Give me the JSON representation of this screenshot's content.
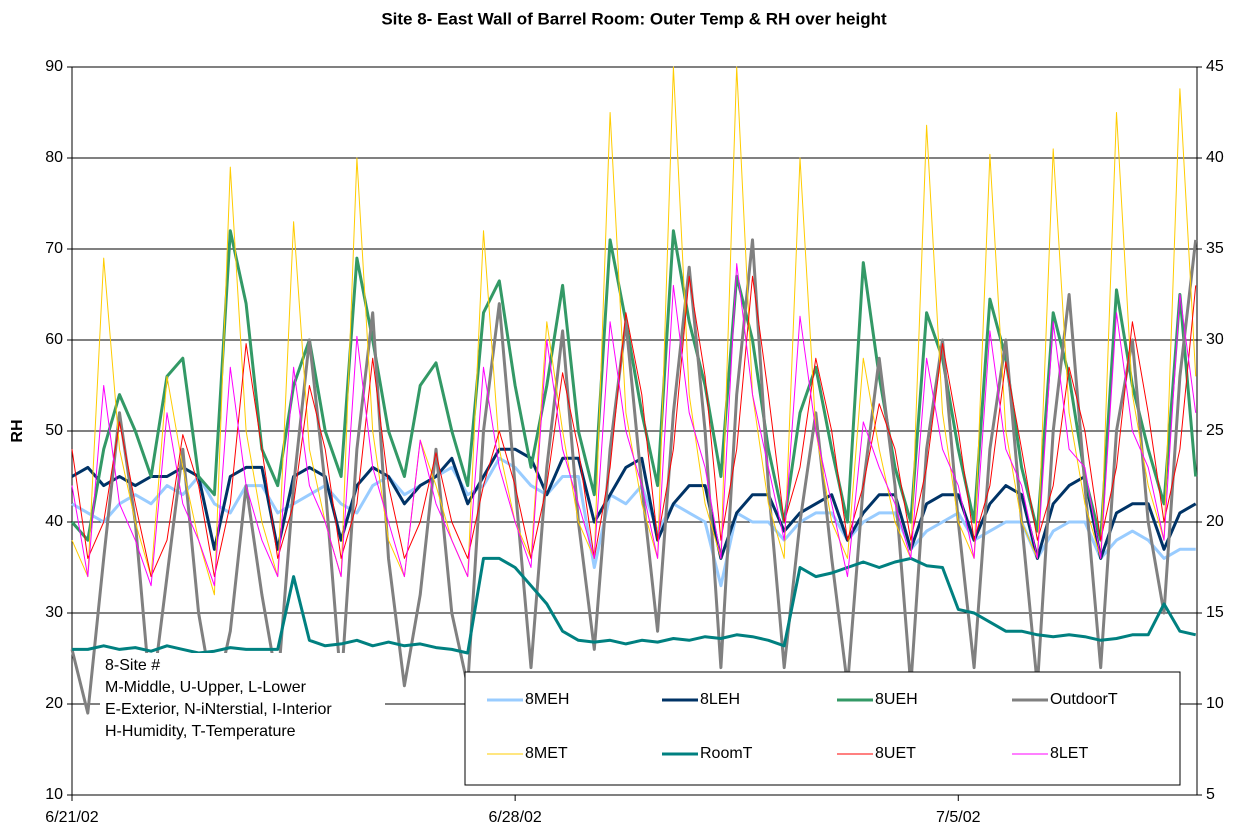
{
  "chart_data": {
    "type": "line",
    "title": "Site 8- East Wall of Barrel Room: Outer Temp & RH over height",
    "ylabel": "RH",
    "annotation": [
      "8-Site #",
      "M-Middle, U-Upper, L-Lower",
      "E-Exterior, N-iNterstial, I-Interior",
      "H-Humidity, T-Temperature"
    ],
    "x": [
      "2002-06-21T00:00",
      "2002-06-21T06:00",
      "2002-06-21T12:00",
      "2002-06-21T18:00",
      "2002-06-22T00:00",
      "2002-06-22T06:00",
      "2002-06-22T12:00",
      "2002-06-22T18:00",
      "2002-06-23T00:00",
      "2002-06-23T06:00",
      "2002-06-23T12:00",
      "2002-06-23T18:00",
      "2002-06-24T00:00",
      "2002-06-24T06:00",
      "2002-06-24T12:00",
      "2002-06-24T18:00",
      "2002-06-25T00:00",
      "2002-06-25T06:00",
      "2002-06-25T12:00",
      "2002-06-25T18:00",
      "2002-06-26T00:00",
      "2002-06-26T06:00",
      "2002-06-26T12:00",
      "2002-06-26T18:00",
      "2002-06-27T00:00",
      "2002-06-27T06:00",
      "2002-06-27T12:00",
      "2002-06-27T18:00",
      "2002-06-28T00:00",
      "2002-06-28T06:00",
      "2002-06-28T12:00",
      "2002-06-28T18:00",
      "2002-06-29T00:00",
      "2002-06-29T06:00",
      "2002-06-29T12:00",
      "2002-06-29T18:00",
      "2002-06-30T00:00",
      "2002-06-30T06:00",
      "2002-06-30T12:00",
      "2002-06-30T18:00",
      "2002-07-01T00:00",
      "2002-07-01T06:00",
      "2002-07-01T12:00",
      "2002-07-01T18:00",
      "2002-07-02T00:00",
      "2002-07-02T06:00",
      "2002-07-02T12:00",
      "2002-07-02T18:00",
      "2002-07-03T00:00",
      "2002-07-03T06:00",
      "2002-07-03T12:00",
      "2002-07-03T18:00",
      "2002-07-04T00:00",
      "2002-07-04T06:00",
      "2002-07-04T12:00",
      "2002-07-04T18:00",
      "2002-07-05T00:00",
      "2002-07-05T06:00",
      "2002-07-05T12:00",
      "2002-07-05T18:00",
      "2002-07-06T00:00",
      "2002-07-06T06:00",
      "2002-07-06T12:00",
      "2002-07-06T18:00",
      "2002-07-07T00:00",
      "2002-07-07T06:00",
      "2002-07-07T12:00",
      "2002-07-07T18:00",
      "2002-07-08T00:00",
      "2002-07-08T06:00",
      "2002-07-08T12:00",
      "2002-07-08T18:00"
    ],
    "xlim": [
      "2002-06-21T00:00",
      "2002-07-08T18:30"
    ],
    "xticks": [
      {
        "value": "2002-06-21T00:00",
        "label": "6/21/02"
      },
      {
        "value": "2002-06-28T00:00",
        "label": "6/28/02"
      },
      {
        "value": "2002-07-05T00:00",
        "label": "7/5/02"
      }
    ],
    "ylim": [
      10,
      90
    ],
    "yticks": [
      10,
      20,
      30,
      40,
      50,
      60,
      70,
      80,
      90
    ],
    "y2lim": [
      5,
      45
    ],
    "y2ticks": [
      5,
      10,
      15,
      20,
      25,
      30,
      35,
      40,
      45
    ],
    "grid": true,
    "series": [
      {
        "name": "8MEH",
        "color": "#99ccff",
        "width": 3,
        "values": [
          42,
          41,
          40,
          42,
          43,
          42,
          44,
          43,
          45,
          42,
          41,
          44,
          44,
          41,
          42,
          43,
          44,
          42,
          41,
          44,
          45,
          43,
          44,
          45,
          46,
          43,
          44,
          47,
          46,
          44,
          43,
          45,
          45,
          35,
          43,
          42,
          44,
          39,
          42,
          41,
          40,
          33,
          41,
          40,
          40,
          38,
          40,
          41,
          41,
          38,
          40,
          41,
          41,
          37,
          39,
          40,
          41,
          38,
          39,
          40,
          40,
          36,
          39,
          40,
          40,
          36,
          38,
          39,
          38,
          36,
          37,
          37
        ]
      },
      {
        "name": "8LEH",
        "color": "#003366",
        "width": 3,
        "values": [
          45,
          46,
          44,
          45,
          44,
          45,
          45,
          46,
          45,
          37,
          45,
          46,
          46,
          37,
          45,
          46,
          45,
          38,
          44,
          46,
          45,
          42,
          44,
          45,
          47,
          42,
          45,
          48,
          48,
          47,
          43,
          47,
          47,
          40,
          43,
          46,
          47,
          38,
          42,
          44,
          44,
          36,
          41,
          43,
          43,
          39,
          41,
          42,
          43,
          38,
          41,
          43,
          43,
          37,
          42,
          43,
          43,
          38,
          42,
          44,
          43,
          36,
          42,
          44,
          45,
          36,
          41,
          42,
          42,
          37,
          41,
          42
        ]
      },
      {
        "name": "8UEH",
        "color": "#339966",
        "width": 3,
        "values": [
          40,
          38,
          48,
          54,
          50,
          45,
          56,
          58,
          45,
          43,
          72,
          64,
          48,
          44,
          55,
          60,
          50,
          45,
          69,
          60,
          50,
          45,
          55,
          57.5,
          50,
          44,
          63,
          66.5,
          55,
          46,
          55,
          66,
          50,
          43,
          71,
          62,
          52,
          44,
          72,
          62,
          55,
          45,
          67,
          60,
          48,
          40,
          52,
          57,
          48,
          40,
          68.5,
          56,
          46,
          40,
          63,
          58,
          48,
          40,
          64.5,
          58,
          46,
          39,
          63,
          56,
          45,
          38,
          65.5,
          55,
          48,
          42,
          65,
          45
        ]
      },
      {
        "name": "OutdoorT",
        "color": "#808080",
        "width": 3,
        "axis": "y2",
        "values": [
          13,
          9.5,
          18,
          26,
          20,
          10,
          17,
          24,
          15,
          10,
          14,
          22,
          16,
          11,
          22,
          30,
          22,
          11,
          24,
          31.5,
          18,
          11,
          16,
          24,
          15,
          11,
          25,
          32,
          22,
          12,
          23,
          30.5,
          20,
          13,
          24,
          31,
          22,
          14,
          26,
          34,
          25,
          12,
          27,
          35.5,
          22,
          12,
          20,
          26,
          18,
          11,
          22,
          29,
          22,
          11,
          24,
          30,
          20,
          12,
          24,
          30,
          20,
          11,
          25,
          32.5,
          22,
          12,
          25,
          30,
          20,
          15,
          28,
          35.5
        ]
      },
      {
        "name": "8MET",
        "color": "#ffcc00",
        "width": 1,
        "axis": "y2",
        "values": [
          19,
          17,
          34.5,
          24,
          20,
          17,
          28,
          23,
          19,
          16,
          39.5,
          25,
          20,
          17,
          36.5,
          24,
          20,
          17,
          40,
          25,
          19,
          17,
          24.5,
          22,
          19,
          17,
          36,
          24,
          20,
          18,
          31,
          25,
          20,
          18,
          42.5,
          26,
          21,
          18,
          45,
          27,
          21,
          18,
          45,
          27,
          21,
          18,
          40,
          25,
          20,
          18,
          29,
          24,
          20,
          18,
          41.8,
          26,
          20,
          18,
          40.2,
          25,
          20,
          18,
          40.5,
          26,
          21,
          18,
          42.5,
          27,
          22,
          19,
          43.8,
          28
        ]
      },
      {
        "name": "RoomT",
        "color": "#008080",
        "width": 3,
        "axis": "y2",
        "values": [
          13,
          13,
          13.2,
          13,
          13.1,
          12.9,
          13.2,
          13,
          12.8,
          12.9,
          13.1,
          13,
          13,
          13,
          17,
          13.5,
          13.2,
          13.3,
          13.5,
          13.2,
          13.4,
          13.2,
          13.3,
          13.1,
          13,
          12.8,
          18,
          18,
          17.5,
          16.5,
          15.5,
          14,
          13.5,
          13.4,
          13.5,
          13.3,
          13.5,
          13.4,
          13.6,
          13.5,
          13.7,
          13.6,
          13.8,
          13.7,
          13.5,
          13.2,
          17.5,
          17,
          17.2,
          17.5,
          17.8,
          17.5,
          17.8,
          18,
          17.6,
          17.5,
          15.2,
          15,
          14.5,
          14,
          14,
          13.8,
          13.7,
          13.8,
          13.7,
          13.5,
          13.6,
          13.8,
          13.8,
          15.5,
          14,
          13.8
        ]
      },
      {
        "name": "8UET",
        "color": "#ff0000",
        "width": 1,
        "axis": "y2",
        "values": [
          24,
          18,
          20,
          25.5,
          21,
          17,
          19,
          24.8,
          22,
          17,
          21,
          29.8,
          24,
          18,
          21,
          27.5,
          24,
          18,
          21,
          29,
          22,
          18,
          20,
          23.8,
          20,
          18,
          22,
          25,
          22,
          18,
          22,
          28.2,
          24,
          18,
          23,
          31.5,
          27,
          19,
          24,
          33.5,
          28,
          19,
          24,
          33.5,
          27,
          20,
          23,
          29,
          25,
          19,
          22,
          26.5,
          24,
          19,
          23,
          29.8,
          25,
          19,
          22,
          28.8,
          24,
          19,
          22,
          28.5,
          25,
          19,
          23,
          31,
          26,
          20,
          24,
          33
        ]
      },
      {
        "name": "8LET",
        "color": "#ff00ff",
        "width": 1,
        "axis": "y2",
        "values": [
          22,
          17,
          27.5,
          21,
          19,
          16.5,
          26,
          21,
          19,
          16.5,
          28.5,
          22,
          19,
          17,
          28.5,
          22,
          20,
          17,
          30.2,
          23,
          20,
          17,
          24.5,
          21,
          19,
          17,
          28.5,
          23,
          20,
          17.5,
          30,
          24,
          21,
          18,
          31,
          25,
          22,
          18,
          33,
          26,
          23,
          18,
          34.2,
          27,
          23,
          19,
          31.3,
          25,
          21,
          17,
          25.5,
          23,
          21,
          18,
          29,
          24,
          22,
          18,
          30.5,
          24,
          22,
          18,
          31,
          24,
          23,
          18,
          31.5,
          25,
          23,
          19,
          32.5,
          26
        ]
      }
    ]
  }
}
